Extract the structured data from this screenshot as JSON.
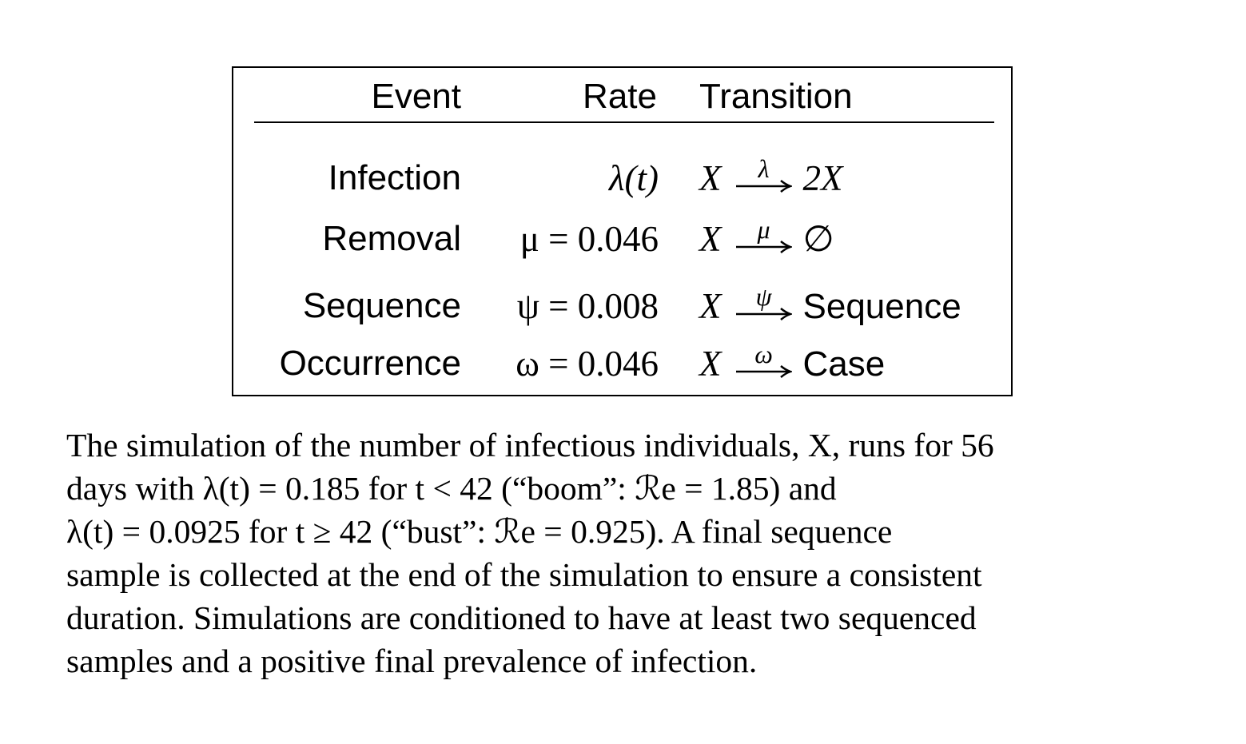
{
  "table": {
    "headers": {
      "event": "Event",
      "rate": "Rate",
      "transition": "Transition"
    },
    "rows": [
      {
        "event": "Infection",
        "rate": "λ(t)",
        "from": "X",
        "arrow_label": "λ",
        "to": "2X"
      },
      {
        "event": "Removal",
        "rate": "μ = 0.046",
        "from": "X",
        "arrow_label": "μ",
        "to": "∅"
      },
      {
        "event": "Sequence",
        "rate": "ψ = 0.008",
        "from": "X",
        "arrow_label": "ψ",
        "to": "Sequence"
      },
      {
        "event": "Occurrence",
        "rate": "ω = 0.046",
        "from": "X",
        "arrow_label": "ω",
        "to": "Case"
      }
    ]
  },
  "caption": {
    "lines": [
      "The simulation of the number of infectious individuals, X, runs for 56",
      "days with λ(t) = 0.185 for t < 42 (“boom”: ℛe = 1.85) and",
      "λ(t) = 0.0925 for t ≥ 42 (“bust”: ℛe = 0.925). A final sequence",
      "sample is collected at the end of the simulation to ensure a consistent",
      "duration. Simulations are conditioned to have at least two sequenced",
      "samples and a positive final prevalence of infection."
    ]
  }
}
